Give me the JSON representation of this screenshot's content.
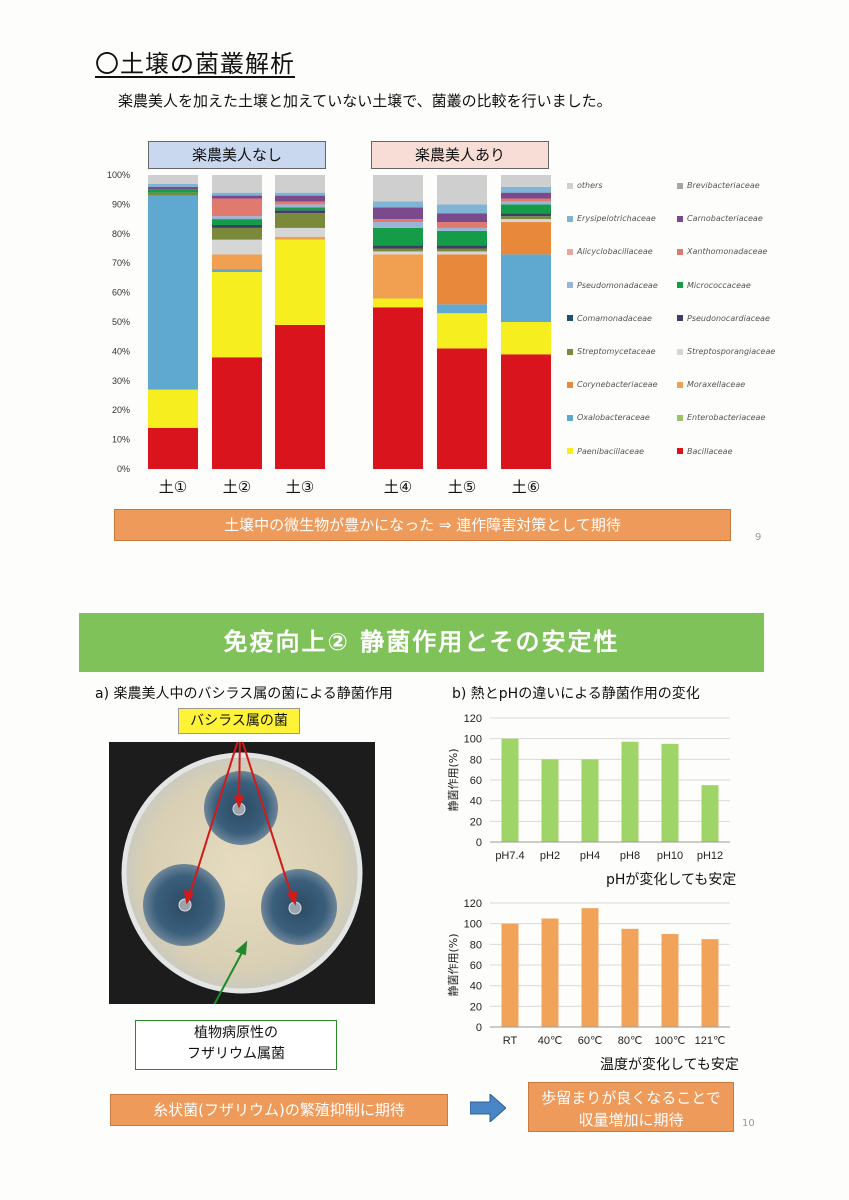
{
  "title": "〇土壌の菌叢解析",
  "subtitle": "楽農美人を加えた土壌と加えていない土壌で、菌叢の比較を行いました。",
  "group_labels": [
    "楽農美人なし",
    "楽農美人あり"
  ],
  "legend": [
    {
      "name": "others",
      "color": "#cfcfcf"
    },
    {
      "name": "Brevibacteriaceae",
      "color": "#a6a6a6"
    },
    {
      "name": "Erysipelotrichaceae",
      "color": "#7fb4d4"
    },
    {
      "name": "Carnobacteriaceae",
      "color": "#7a4a8c"
    },
    {
      "name": "Alicyclobacillaceae",
      "color": "#e8a6a0"
    },
    {
      "name": "Xanthomonadaceae",
      "color": "#e07a6e"
    },
    {
      "name": "Pseudomonadaceae",
      "color": "#9ab4d8"
    },
    {
      "name": "Micrococcaceae",
      "color": "#149c48"
    },
    {
      "name": "Comamonadaceae",
      "color": "#1f4e6e"
    },
    {
      "name": "Pseudonocardiaceae",
      "color": "#3e3e6a"
    },
    {
      "name": "Streptomycetaceae",
      "color": "#7a8a3a"
    },
    {
      "name": "Streptosporangiaceae",
      "color": "#d6d6d6"
    },
    {
      "name": "Corynebacteriaceae",
      "color": "#e8883a"
    },
    {
      "name": "Moraxellaceae",
      "color": "#f0a050"
    },
    {
      "name": "Oxalobacteraceae",
      "color": "#5fa8d0"
    },
    {
      "name": "Enterobacteriaceae",
      "color": "#9cc46a"
    },
    {
      "name": "Paenibacillaceae",
      "color": "#f7ee20"
    },
    {
      "name": "Bacillaceae",
      "color": "#d9141c"
    }
  ],
  "banner1": "土壌中の微生物が豊かになった ⇒ 連作障害対策として期待",
  "page9": "9",
  "section2_title": "免疫向上② 静菌作用とその安定性",
  "caption_a": "a) 楽農美人中のバシラス属の菌による静菌作用",
  "caption_b": "b) 熱とpHの違いによる静菌作用の変化",
  "bacillus_label": "バシラス属の菌",
  "fusarium_label_1": "植物病原性の",
  "fusarium_label_2": "フザリウム属菌",
  "cond1": "pHが変化しても安定",
  "cond2": "温度が変化しても安定",
  "banner2": "糸状菌(フザリウム)の繁殖抑制に期待",
  "banner3_1": "歩留まりが良くなることで",
  "banner3_2": "収量増加に期待",
  "page10": "10",
  "chart_data": [
    {
      "type": "bar",
      "stacked": true,
      "categories": [
        "土①",
        "土②",
        "土③",
        "土④",
        "土⑤",
        "土⑥"
      ],
      "ylim": [
        0,
        100
      ],
      "yticks": [
        "0%",
        "10%",
        "20%",
        "30%",
        "40%",
        "50%",
        "60%",
        "70%",
        "80%",
        "90%",
        "100%"
      ],
      "series": [
        {
          "name": "Bacillaceae",
          "color": "#d9141c",
          "values": [
            14,
            38,
            49,
            55,
            41,
            39
          ]
        },
        {
          "name": "Paenibacillaceae",
          "color": "#f7ee20",
          "values": [
            13,
            29,
            29,
            3,
            12,
            11
          ]
        },
        {
          "name": "Oxalobacteraceae",
          "color": "#5fa8d0",
          "values": [
            66,
            1,
            0,
            0,
            3,
            23
          ]
        },
        {
          "name": "Moraxellaceae",
          "color": "#f0a050",
          "values": [
            0,
            5,
            1,
            15,
            0,
            0
          ]
        },
        {
          "name": "Corynebacteriaceae",
          "color": "#e8883a",
          "values": [
            0,
            0,
            0,
            0,
            17,
            11
          ]
        },
        {
          "name": "Streptosporangiaceae",
          "color": "#d6d6d6",
          "values": [
            0,
            5,
            3,
            1,
            1,
            1
          ]
        },
        {
          "name": "Streptomycetaceae",
          "color": "#7a8a3a",
          "values": [
            1,
            4,
            5,
            1,
            1,
            1
          ]
        },
        {
          "name": "Pseudonocardiaceae",
          "color": "#3e3e6a",
          "values": [
            0,
            1,
            1,
            1,
            1,
            1
          ]
        },
        {
          "name": "Micrococcaceae",
          "color": "#149c48",
          "values": [
            1,
            2,
            1,
            6,
            5,
            3
          ]
        },
        {
          "name": "Pseudomonadaceae",
          "color": "#9ab4d8",
          "values": [
            0,
            1,
            1,
            2,
            1,
            1
          ]
        },
        {
          "name": "Xanthomonadaceae",
          "color": "#e07a6e",
          "values": [
            0,
            6,
            1,
            1,
            2,
            1
          ]
        },
        {
          "name": "Carnobacteriaceae",
          "color": "#7a4a8c",
          "values": [
            1,
            1,
            2,
            4,
            3,
            2
          ]
        },
        {
          "name": "Erysipelotrichaceae",
          "color": "#7fb4d4",
          "values": [
            1,
            1,
            1,
            2,
            3,
            2
          ]
        },
        {
          "name": "others",
          "color": "#cfcfcf",
          "values": [
            3,
            6,
            6,
            9,
            10,
            4
          ]
        }
      ]
    },
    {
      "type": "bar",
      "categories": [
        "pH7.4",
        "pH2",
        "pH4",
        "pH8",
        "pH10",
        "pH12"
      ],
      "values": [
        100,
        80,
        80,
        97,
        95,
        55
      ],
      "ylabel": "静菌作用(%)",
      "ylim": [
        0,
        120
      ],
      "color": "#9fd466"
    },
    {
      "type": "bar",
      "categories": [
        "RT",
        "40℃",
        "60℃",
        "80℃",
        "100℃",
        "121℃"
      ],
      "values": [
        100,
        105,
        115,
        95,
        90,
        85
      ],
      "ylabel": "静菌作用(%)",
      "ylim": [
        0,
        120
      ],
      "color": "#f2a35a"
    }
  ]
}
